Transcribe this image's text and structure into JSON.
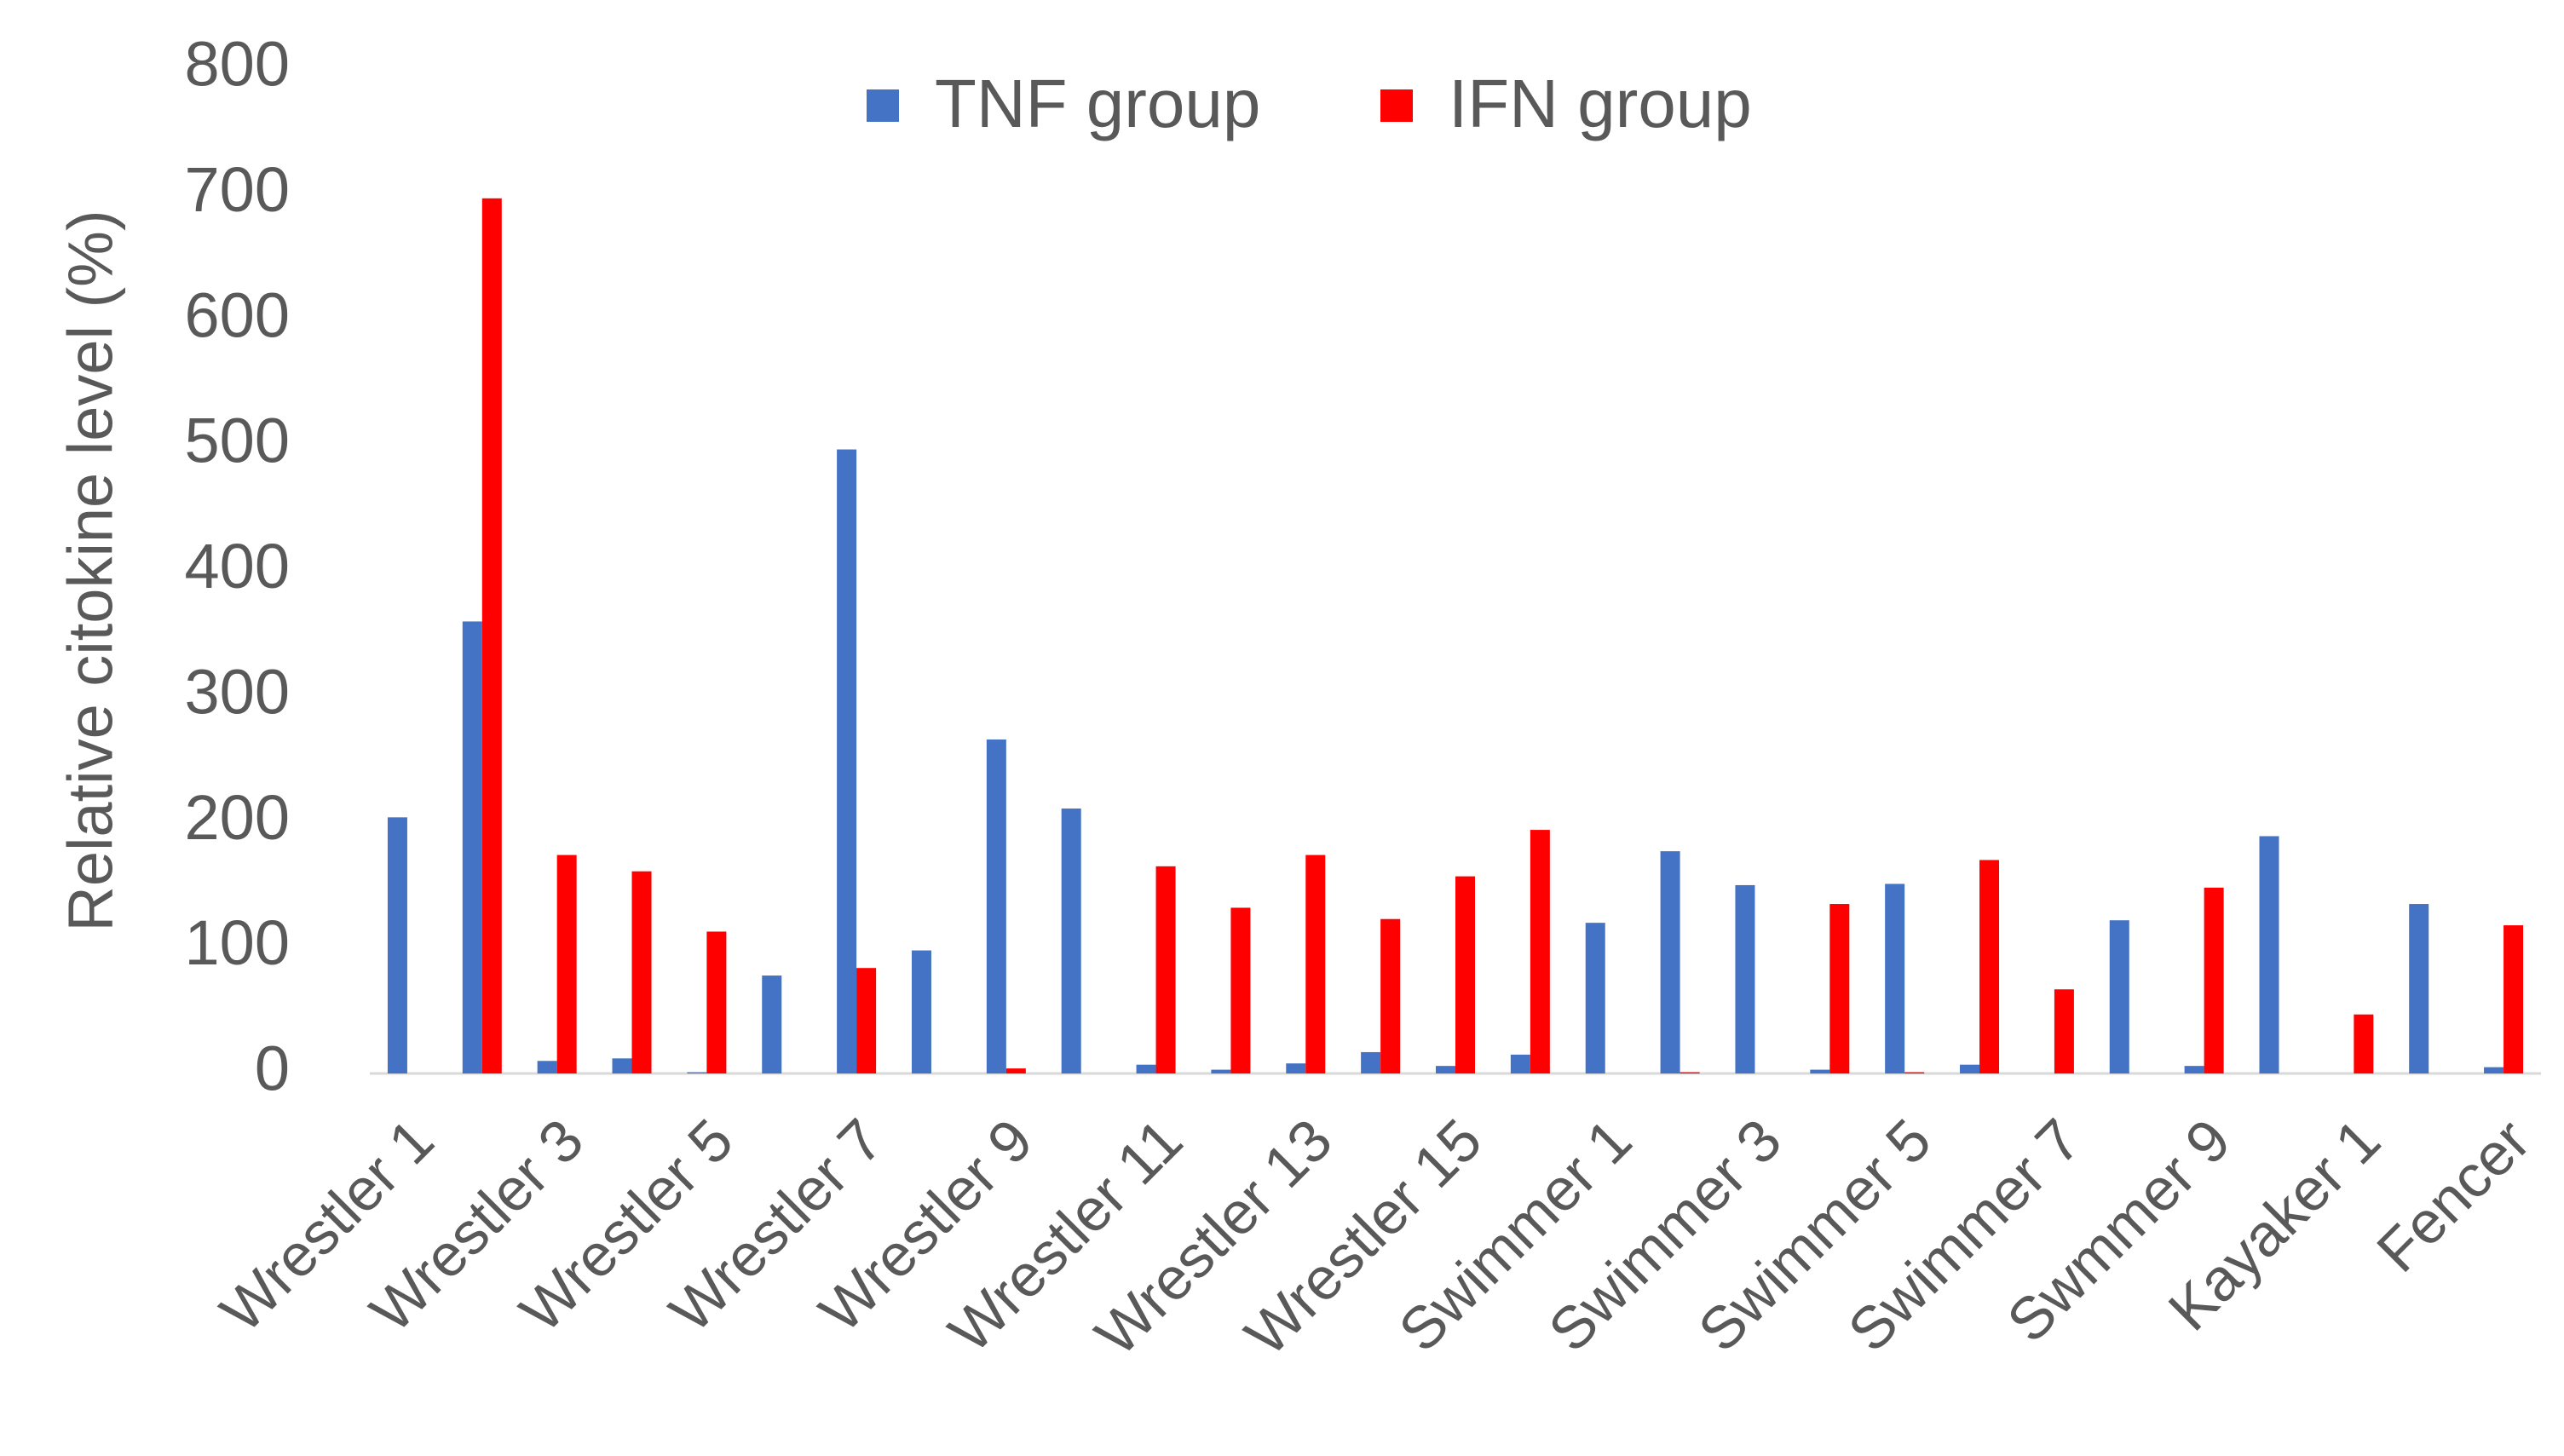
{
  "chart_data": {
    "type": "bar",
    "y_label": "Relative  citokine level (%)",
    "categories": [
      "Wrestler 1",
      null,
      "Wrestler 3",
      null,
      "Wrestler 5",
      null,
      "Wrestler 7",
      null,
      "Wrestler 9",
      null,
      "Wrestler 11",
      null,
      "Wrestler 13",
      null,
      "Wrestler 15",
      null,
      "Swimmer 1",
      null,
      "Swimmer 3",
      null,
      "Swimmer 5",
      null,
      "Swimmer 7",
      null,
      "Swmmer 9",
      null,
      "Kayaker 1",
      null,
      "Fencer"
    ],
    "series": [
      {
        "name": "TNF group",
        "color": "#4472c4",
        "values": [
          204,
          360,
          10,
          12,
          1,
          78,
          497,
          98,
          266,
          211,
          7,
          3,
          8,
          17,
          6,
          15,
          120,
          177,
          150,
          3,
          151,
          7,
          0,
          122,
          6,
          189,
          0,
          135,
          5
        ]
      },
      {
        "name": "IFN group",
        "color": "#ff0000",
        "values": [
          0,
          697,
          174,
          161,
          113,
          0,
          84,
          0,
          4,
          0,
          165,
          132,
          174,
          123,
          157,
          194,
          0,
          1,
          0,
          135,
          1,
          170,
          67,
          0,
          148,
          0,
          47,
          0,
          118
        ]
      }
    ],
    "ylim": [
      0,
      800
    ],
    "yticks": [
      0,
      100,
      200,
      300,
      400,
      500,
      600,
      700,
      800
    ],
    "legend": "top"
  }
}
